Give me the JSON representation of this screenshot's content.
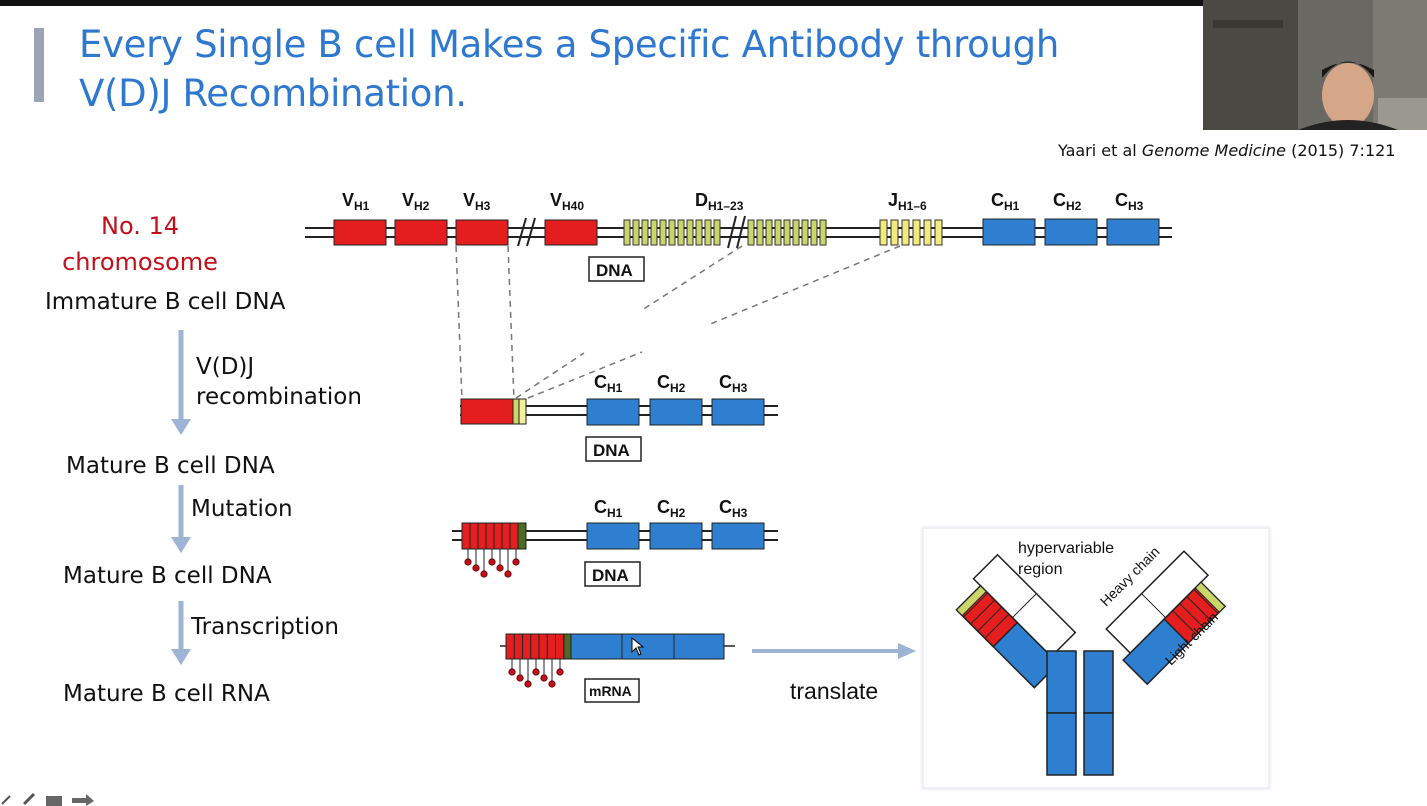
{
  "slide": {
    "title_line1": "Every Single B cell Makes a Specific Antibody through",
    "title_line2": "V(D)J Recombination.",
    "citation_prefix": "Yaari et al ",
    "citation_journal": "Genome Medicine",
    "citation_suffix": " (2015) 7:121"
  },
  "left": {
    "chromosome_line1": "No. 14",
    "chromosome_line2": "chromosome",
    "stage1": "Immature B cell DNA",
    "step1_line1": "V(D)J",
    "step1_line2": "recombination",
    "stage2": "Mature B cell DNA",
    "step2": "Mutation",
    "stage3": "Mature B cell DNA",
    "step3": "Transcription",
    "stage4": "Mature B cell RNA"
  },
  "diagram": {
    "v_labels": [
      "VH1",
      "VH2",
      "VH3",
      "VH40"
    ],
    "d_label": "DH1–23",
    "j_label": "JH1–6",
    "c_labels": [
      "CH1",
      "CH2",
      "CH3"
    ],
    "dna_tag": "DNA",
    "mrna_tag": "mRNA",
    "translate": "translate",
    "hypervariable_line1": "hypervariable",
    "hypervariable_line2": "region",
    "heavy_chain": "Heavy chain",
    "light_chain": "Light chain"
  },
  "colors": {
    "title": "#2e78d0",
    "v_segment": "#e41e1e",
    "d_segment": "#c8d66a",
    "c_segment": "#2f7fd0",
    "arrow": "#9db4d4",
    "chromosome_label": "#c0101b"
  }
}
